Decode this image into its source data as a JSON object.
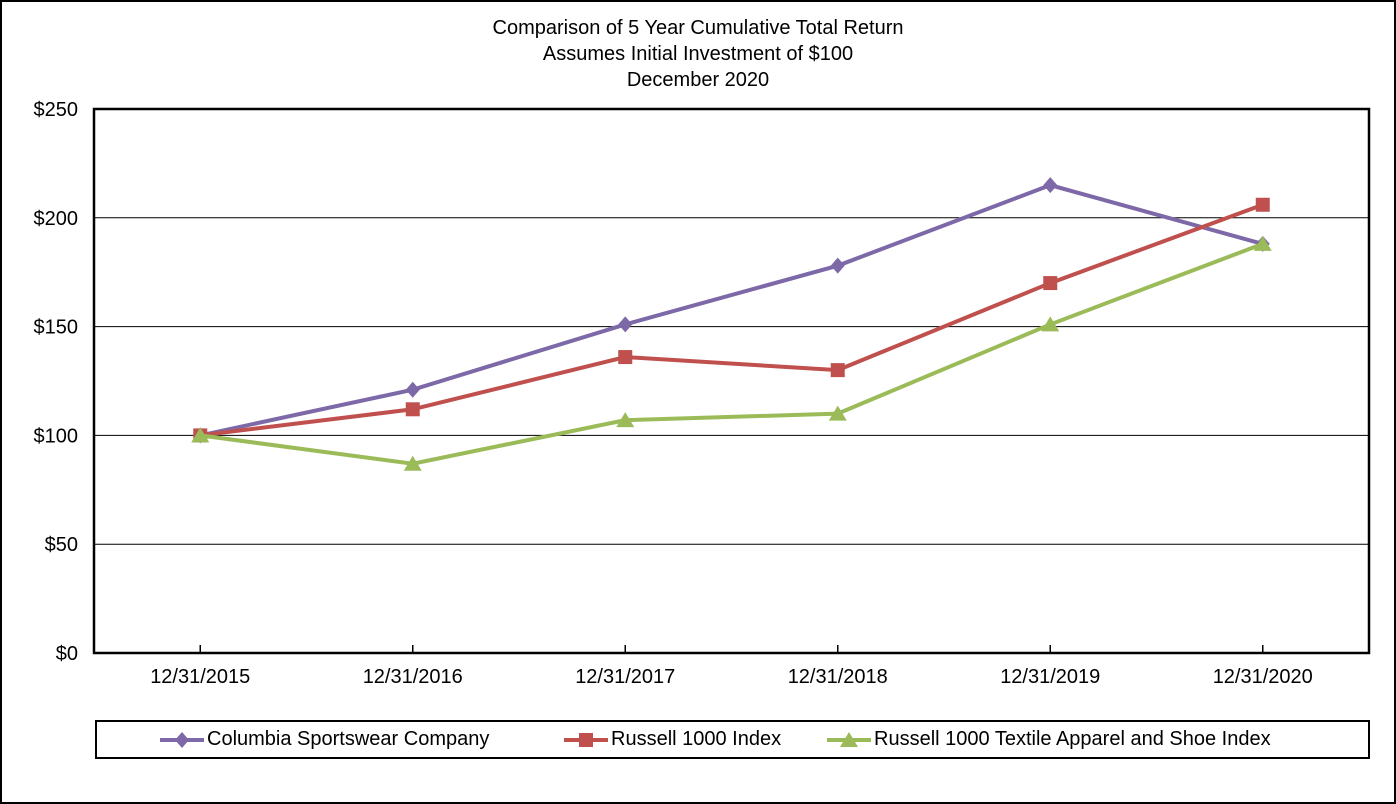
{
  "title": {
    "line1": "Comparison of 5 Year Cumulative Total Return",
    "line2": "Assumes Initial Investment of $100",
    "line3": "December 2020"
  },
  "chart_data": {
    "type": "line",
    "categories": [
      "12/31/2015",
      "12/31/2016",
      "12/31/2017",
      "12/31/2018",
      "12/31/2019",
      "12/31/2020"
    ],
    "series": [
      {
        "name": "Columbia Sportswear Company",
        "color": "#7D68A8",
        "marker": "diamond",
        "values": [
          100,
          121,
          151,
          178,
          215,
          188
        ]
      },
      {
        "name": "Russell 1000 Index",
        "color": "#C0504D",
        "marker": "square",
        "values": [
          100,
          112,
          136,
          130,
          170,
          206
        ]
      },
      {
        "name": "Russell 1000 Textile Apparel and Shoe Index",
        "color": "#9BBB59",
        "marker": "triangle",
        "values": [
          100,
          87,
          107,
          110,
          151,
          188
        ]
      }
    ],
    "y_ticks": [
      {
        "label": "$0",
        "value": 0
      },
      {
        "label": "$50",
        "value": 50
      },
      {
        "label": "$100",
        "value": 100
      },
      {
        "label": "$150",
        "value": 150
      },
      {
        "label": "$200",
        "value": 200
      },
      {
        "label": "$250",
        "value": 250
      }
    ],
    "ylim": [
      0,
      250
    ],
    "grid": true,
    "legend_position": "bottom",
    "axis_color": "#000000",
    "background_color": "#FFFFFF"
  }
}
